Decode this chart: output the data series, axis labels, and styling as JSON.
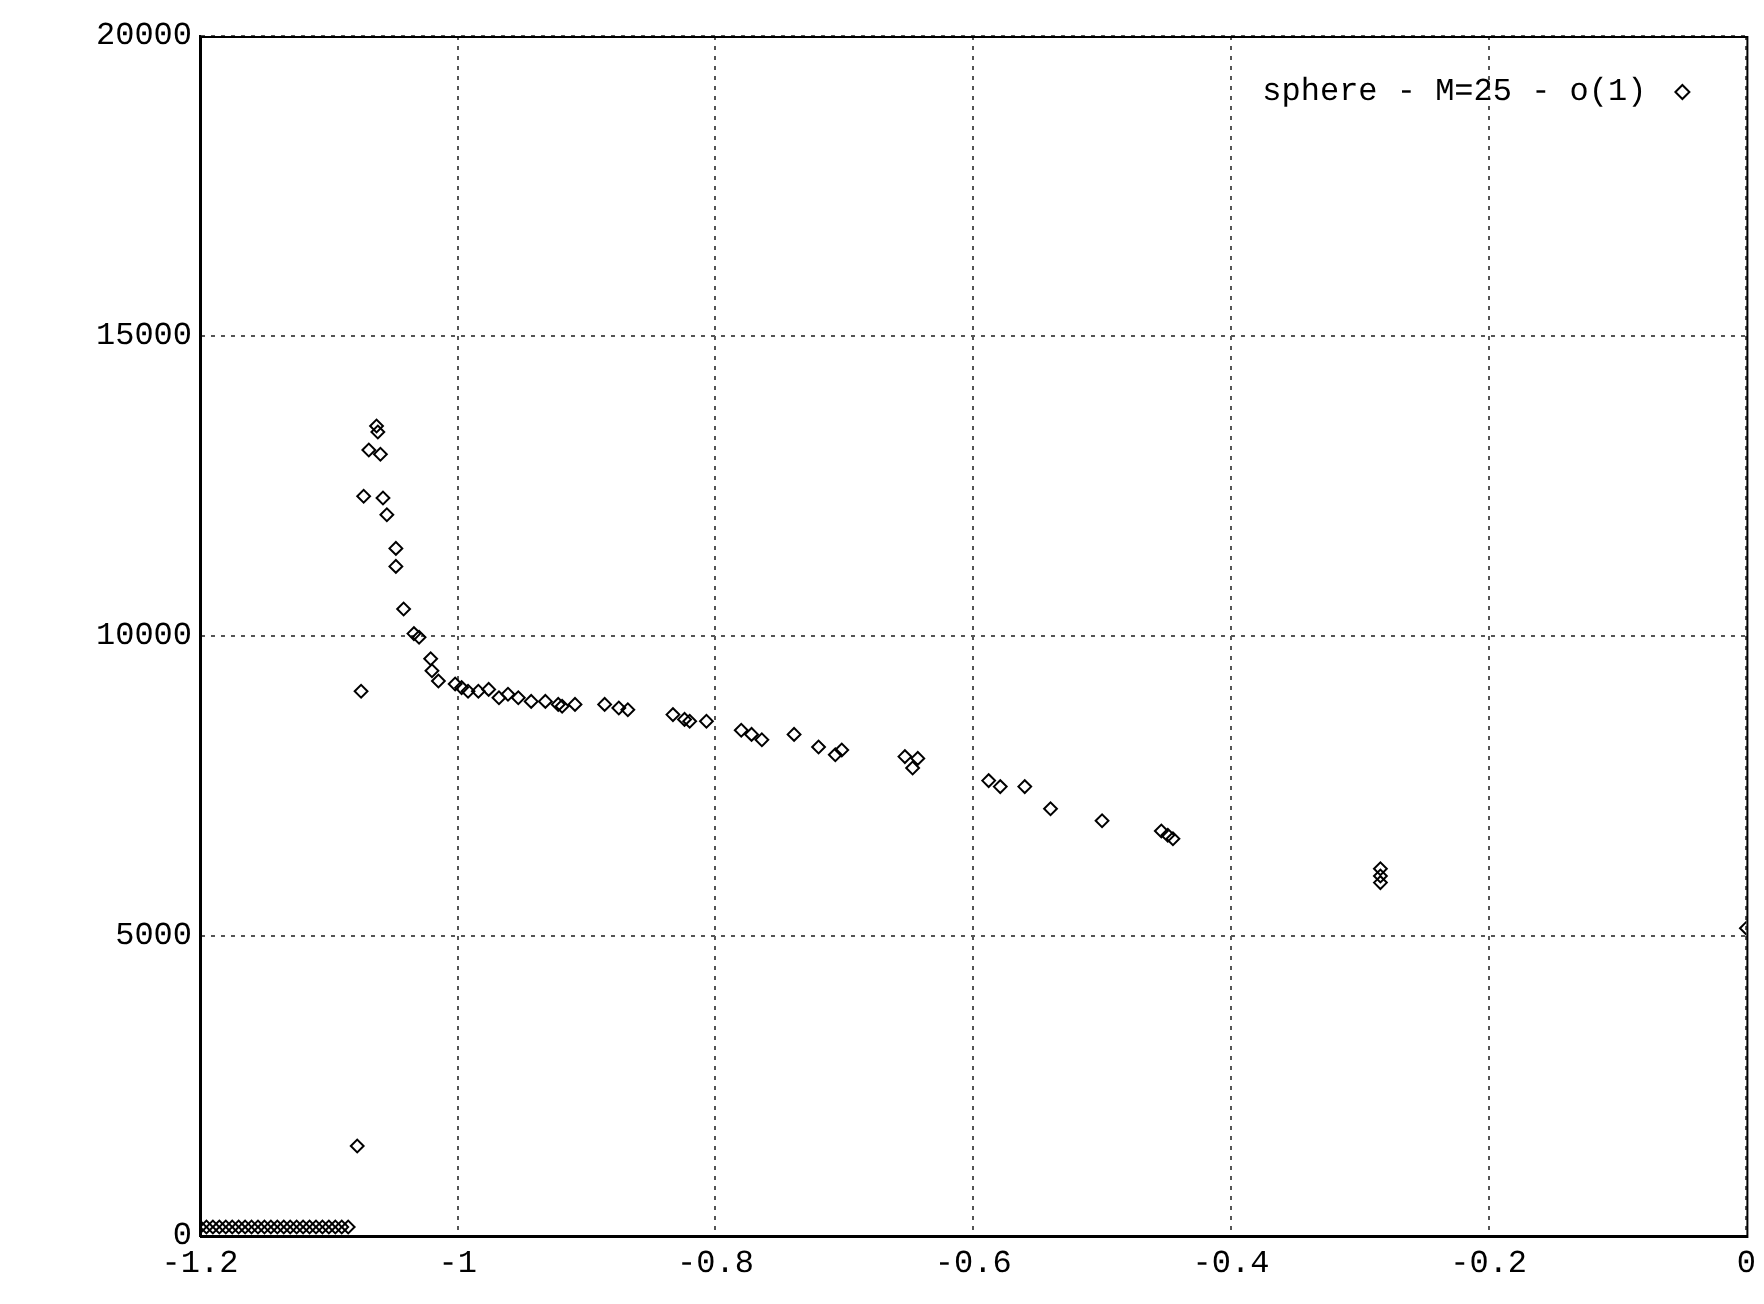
{
  "chart_data": {
    "type": "scatter",
    "marker": "diamond",
    "grid": true,
    "legend": "top right",
    "xlim": [
      -1.2,
      0
    ],
    "xticks": [
      -1.2,
      -1,
      -0.8,
      -0.6,
      -0.4,
      -0.2,
      0
    ],
    "ylim": [
      0,
      20000
    ],
    "yticks": [
      0,
      5000,
      10000,
      15000,
      20000
    ],
    "series": [
      {
        "name": "sphere - M=25 - o(1)",
        "color": "#000000",
        "x": [
          -1.2,
          -1.195,
          -1.19,
          -1.185,
          -1.18,
          -1.175,
          -1.17,
          -1.165,
          -1.16,
          -1.155,
          -1.15,
          -1.145,
          -1.14,
          -1.135,
          -1.13,
          -1.125,
          -1.12,
          -1.115,
          -1.11,
          -1.105,
          -1.1,
          -1.095,
          -1.09,
          -1.085,
          -1.078,
          -1.075,
          -1.073,
          -1.069,
          -1.063,
          -1.062,
          -1.06,
          -1.058,
          -1.055,
          -1.048,
          -1.048,
          -1.042,
          -1.034,
          -1.03,
          -1.021,
          -1.02,
          -1.015,
          -1.002,
          -0.997,
          -0.992,
          -0.984,
          -0.976,
          -0.968,
          -0.961,
          -0.953,
          -0.943,
          -0.932,
          -0.922,
          -0.919,
          -0.909,
          -0.886,
          -0.875,
          -0.868,
          -0.833,
          -0.824,
          -0.82,
          -0.807,
          -0.78,
          -0.772,
          -0.764,
          -0.739,
          -0.72,
          -0.707,
          -0.702,
          -0.653,
          -0.647,
          -0.643,
          -0.588,
          -0.579,
          -0.56,
          -0.54,
          -0.5,
          -0.454,
          -0.449,
          -0.445,
          -0.284,
          -0.284,
          -0.284,
          0
        ],
        "values": [
          150,
          150,
          150,
          150,
          150,
          150,
          150,
          150,
          150,
          150,
          150,
          150,
          150,
          150,
          150,
          150,
          150,
          150,
          150,
          150,
          150,
          150,
          150,
          150,
          1500,
          9080,
          12330,
          13100,
          13500,
          13400,
          13030,
          12300,
          12020,
          11460,
          11160,
          10450,
          10040,
          9980,
          9620,
          9420,
          9250,
          9200,
          9140,
          9080,
          9080,
          9110,
          8970,
          9030,
          8970,
          8910,
          8910,
          8860,
          8830,
          8860,
          8860,
          8800,
          8770,
          8690,
          8610,
          8580,
          8580,
          8430,
          8360,
          8270,
          8360,
          8150,
          8020,
          8100,
          7990,
          7800,
          7960,
          7590,
          7490,
          7490,
          7120,
          6920,
          6750,
          6680,
          6620,
          6120,
          6000,
          5890,
          5130
        ]
      }
    ]
  }
}
